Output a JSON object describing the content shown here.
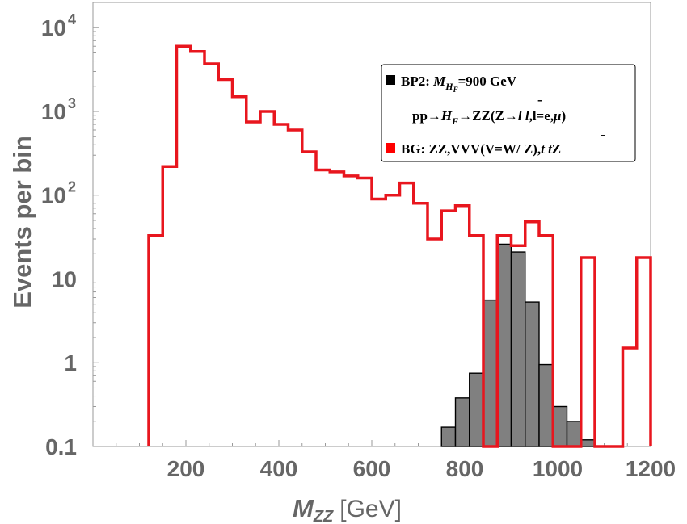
{
  "chart_data": {
    "type": "histogram",
    "x_scale": "linear",
    "y_scale": "log",
    "xlim": [
      0,
      1200
    ],
    "ylim": [
      0.1,
      20000
    ],
    "xlabel_main": "M",
    "xlabel_sub": "ZZ",
    "xlabel_unit": "[GeV]",
    "ylabel": "Events per bin",
    "x_ticks": [
      {
        "value": 200,
        "label": "200"
      },
      {
        "value": 400,
        "label": "400"
      },
      {
        "value": 600,
        "label": "600"
      },
      {
        "value": 800,
        "label": "800"
      },
      {
        "value": 1000,
        "label": "1000"
      },
      {
        "value": 1200,
        "label": "1200"
      }
    ],
    "y_ticks": [
      {
        "value": 0.1,
        "label": "0.1"
      },
      {
        "value": 1,
        "label": "1"
      },
      {
        "value": 10,
        "label": "10"
      },
      {
        "value": 100,
        "label": "10",
        "exp": "2"
      },
      {
        "value": 1000,
        "label": "10",
        "exp": "3"
      },
      {
        "value": 10000,
        "label": "10",
        "exp": "4"
      }
    ],
    "series": [
      {
        "name": "BG",
        "color": "#e8161e",
        "fill": false,
        "bins": [
          {
            "lo": 120,
            "hi": 150,
            "v": 33
          },
          {
            "lo": 150,
            "hi": 180,
            "v": 220
          },
          {
            "lo": 180,
            "hi": 210,
            "v": 6000
          },
          {
            "lo": 210,
            "hi": 240,
            "v": 5200
          },
          {
            "lo": 240,
            "hi": 270,
            "v": 3700
          },
          {
            "lo": 270,
            "hi": 300,
            "v": 2400
          },
          {
            "lo": 300,
            "hi": 330,
            "v": 1500
          },
          {
            "lo": 330,
            "hi": 360,
            "v": 750
          },
          {
            "lo": 360,
            "hi": 390,
            "v": 1000
          },
          {
            "lo": 390,
            "hi": 420,
            "v": 700
          },
          {
            "lo": 420,
            "hi": 450,
            "v": 600
          },
          {
            "lo": 450,
            "hi": 480,
            "v": 330
          },
          {
            "lo": 480,
            "hi": 510,
            "v": 200
          },
          {
            "lo": 510,
            "hi": 540,
            "v": 190
          },
          {
            "lo": 540,
            "hi": 570,
            "v": 170
          },
          {
            "lo": 570,
            "hi": 600,
            "v": 160
          },
          {
            "lo": 600,
            "hi": 630,
            "v": 90
          },
          {
            "lo": 630,
            "hi": 660,
            "v": 100
          },
          {
            "lo": 660,
            "hi": 690,
            "v": 140
          },
          {
            "lo": 690,
            "hi": 720,
            "v": 80
          },
          {
            "lo": 720,
            "hi": 750,
            "v": 30
          },
          {
            "lo": 750,
            "hi": 780,
            "v": 65
          },
          {
            "lo": 780,
            "hi": 810,
            "v": 75
          },
          {
            "lo": 810,
            "hi": 840,
            "v": 33
          },
          {
            "lo": 840,
            "hi": 870,
            "v": 0.1
          },
          {
            "lo": 870,
            "hi": 900,
            "v": 33
          },
          {
            "lo": 900,
            "hi": 930,
            "v": 25
          },
          {
            "lo": 930,
            "hi": 960,
            "v": 48
          },
          {
            "lo": 960,
            "hi": 990,
            "v": 33
          },
          {
            "lo": 990,
            "hi": 1020,
            "v": 0.1
          },
          {
            "lo": 1020,
            "hi": 1050,
            "v": 0.1
          },
          {
            "lo": 1050,
            "hi": 1080,
            "v": 18
          },
          {
            "lo": 1080,
            "hi": 1110,
            "v": 0.1
          },
          {
            "lo": 1110,
            "hi": 1140,
            "v": 0.1
          },
          {
            "lo": 1140,
            "hi": 1170,
            "v": 1.5
          },
          {
            "lo": 1170,
            "hi": 1200,
            "v": 18
          }
        ]
      },
      {
        "name": "BP2",
        "color": "#000000",
        "fill": true,
        "fill_color": "#808080",
        "bins": [
          {
            "lo": 690,
            "hi": 720,
            "v": 0.1
          },
          {
            "lo": 720,
            "hi": 750,
            "v": 0.1
          },
          {
            "lo": 750,
            "hi": 780,
            "v": 0.17
          },
          {
            "lo": 780,
            "hi": 810,
            "v": 0.38
          },
          {
            "lo": 810,
            "hi": 840,
            "v": 0.75
          },
          {
            "lo": 840,
            "hi": 870,
            "v": 5.6
          },
          {
            "lo": 870,
            "hi": 900,
            "v": 26
          },
          {
            "lo": 900,
            "hi": 930,
            "v": 21
          },
          {
            "lo": 930,
            "hi": 960,
            "v": 5.3
          },
          {
            "lo": 960,
            "hi": 990,
            "v": 0.95
          },
          {
            "lo": 990,
            "hi": 1020,
            "v": 0.3
          },
          {
            "lo": 1020,
            "hi": 1050,
            "v": 0.2
          },
          {
            "lo": 1050,
            "hi": 1080,
            "v": 0.12
          },
          {
            "lo": 1080,
            "hi": 1110,
            "v": 0.1
          }
        ]
      }
    ],
    "legend": {
      "position": "top-right",
      "entries": [
        {
          "marker_color": "#000000",
          "prefix": "BP2: ",
          "math": "M",
          "sub": "H",
          "subsub": "F",
          "suffix": "=900 GeV"
        },
        {
          "marker_color": null,
          "prefix": "pp→",
          "math": "H",
          "sub": "F",
          "suffix_a": "→ZZ(Z→",
          "math2": "l l",
          "bar": "-",
          "suffix_b": ",l=e,",
          "mu": "μ",
          "close": ")"
        },
        {
          "marker_color": "#ff0000",
          "prefix": "BG: ZZ,VVV(V=W/ Z),",
          "math": "t t",
          "bar": "-",
          "suffix": "Z"
        }
      ]
    }
  }
}
